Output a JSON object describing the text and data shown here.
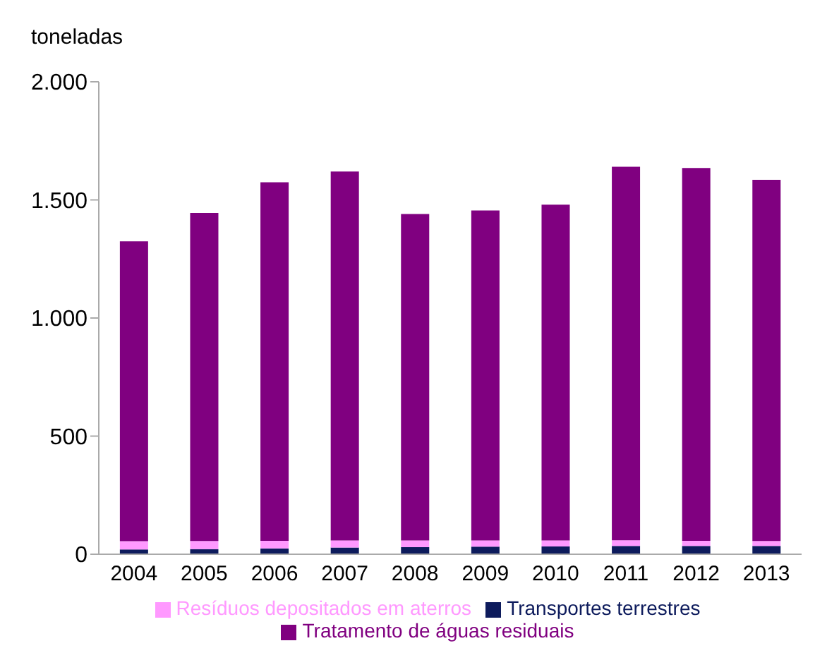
{
  "chart_data": {
    "type": "bar",
    "ylabel": "toneladas",
    "categories": [
      "2004",
      "2005",
      "2006",
      "2007",
      "2008",
      "2009",
      "2010",
      "2011",
      "2012",
      "2013"
    ],
    "stacked": true,
    "ylim": [
      0,
      2000
    ],
    "yticks": [
      {
        "value": 0,
        "label": "0"
      },
      {
        "value": 500,
        "label": "500"
      },
      {
        "value": 1000,
        "label": "1.000"
      },
      {
        "value": 1500,
        "label": "1.500"
      },
      {
        "value": 2000,
        "label": "2.000"
      }
    ],
    "legend": "bottom",
    "grid": false,
    "series": [
      {
        "name": "Transportes terrestres",
        "color": "#0d1b5c",
        "values": [
          20,
          22,
          25,
          28,
          30,
          32,
          33,
          35,
          35,
          35
        ]
      },
      {
        "name": "Resíduos depositados em aterros",
        "color": "#ff99ff",
        "values": [
          35,
          34,
          32,
          30,
          28,
          26,
          25,
          24,
          22,
          21
        ]
      },
      {
        "name": "Tratamento de águas residuais",
        "color": "#800080",
        "values": [
          1270,
          1389,
          1518,
          1562,
          1382,
          1397,
          1422,
          1581,
          1578,
          1529
        ]
      }
    ]
  }
}
